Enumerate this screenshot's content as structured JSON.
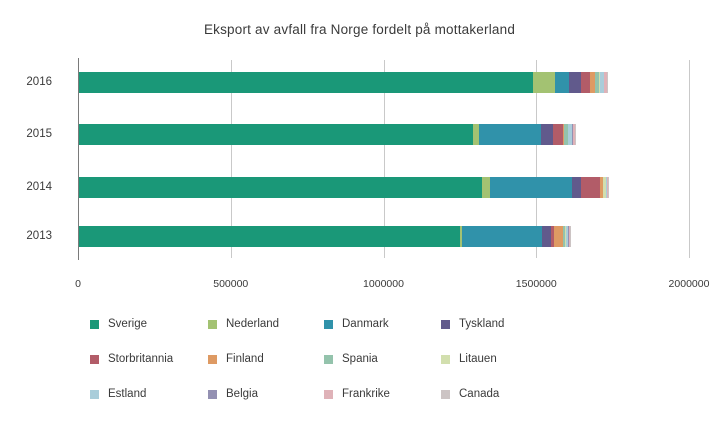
{
  "chart_data": {
    "type": "bar",
    "orientation": "horizontal",
    "stacked": true,
    "title": "Eksport av avfall fra Norge fordelt på mottakerland",
    "categories": [
      "2016",
      "2015",
      "2014",
      "2013"
    ],
    "series": [
      {
        "name": "Sverige",
        "color": "#1a9878",
        "values": [
          1487000,
          1289000,
          1318000,
          1248000
        ]
      },
      {
        "name": "Nederland",
        "color": "#a3c272",
        "values": [
          72000,
          20000,
          26000,
          6000
        ]
      },
      {
        "name": "Danmark",
        "color": "#3092aa",
        "values": [
          46000,
          204000,
          270000,
          261000
        ]
      },
      {
        "name": "Tyskland",
        "color": "#615a8c",
        "values": [
          38000,
          38000,
          28000,
          30000
        ]
      },
      {
        "name": "Storbritannia",
        "color": "#b25c68",
        "values": [
          30000,
          34000,
          64000,
          10000
        ]
      },
      {
        "name": "Finland",
        "color": "#de9a63",
        "values": [
          15000,
          2000,
          8000,
          30000
        ]
      },
      {
        "name": "Spania",
        "color": "#94c3ac",
        "values": [
          13000,
          13000,
          3000,
          7000
        ]
      },
      {
        "name": "Litauen",
        "color": "#d2dfae",
        "values": [
          3000,
          2000,
          8000,
          2000
        ]
      },
      {
        "name": "Estland",
        "color": "#a9cdda",
        "values": [
          13000,
          13000,
          2000,
          7000
        ]
      },
      {
        "name": "Belgia",
        "color": "#9390b2",
        "values": [
          3000,
          2000,
          2000,
          2000
        ]
      },
      {
        "name": "Frankrike",
        "color": "#dfb2b8",
        "values": [
          7000,
          8000,
          2000,
          5000
        ]
      },
      {
        "name": "Canada",
        "color": "#ccc4c4",
        "values": [
          5000,
          2000,
          2000,
          3000
        ]
      }
    ],
    "xlim": [
      0,
      2000000
    ],
    "xticks": [
      0,
      500000,
      1000000,
      1500000,
      2000000
    ],
    "xtick_labels": [
      "0",
      "500000",
      "1000000",
      "1500000",
      "2000000"
    ],
    "grid": "vertical-gridlines",
    "legend_position": "bottom",
    "legend_rows": [
      [
        "Sverige",
        "Nederland",
        "Danmark",
        "Tyskland"
      ],
      [
        "Storbritannia",
        "Finland",
        "Spania",
        "Litauen"
      ],
      [
        "Estland",
        "Belgia",
        "Frankrike",
        "Canada"
      ]
    ]
  }
}
